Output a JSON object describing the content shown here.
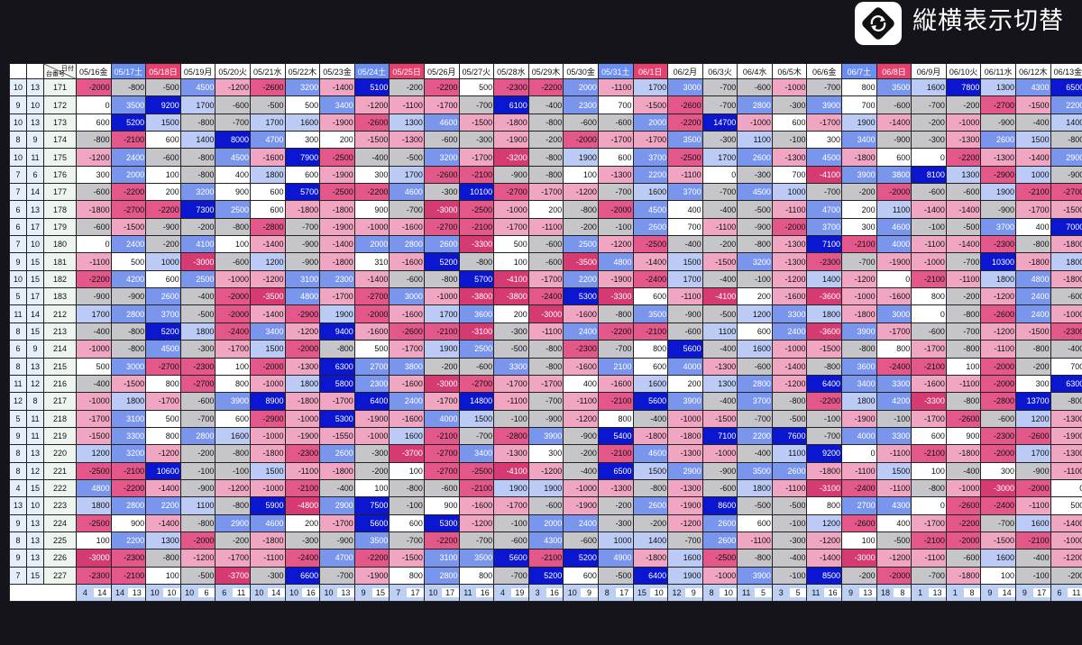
{
  "toolbar": {
    "toggle_label": "縦横表示切替",
    "toggle_icon": "rotate-icon"
  },
  "table": {
    "corner_top": "日付",
    "corner_bottom": "台番号",
    "dates": [
      {
        "label": "05/16金",
        "style": "plain"
      },
      {
        "label": "05/17土",
        "style": "blue"
      },
      {
        "label": "05/18日",
        "style": "red"
      },
      {
        "label": "05/19月",
        "style": "plain"
      },
      {
        "label": "05/20火",
        "style": "plain"
      },
      {
        "label": "05/21水",
        "style": "plain"
      },
      {
        "label": "05/22木",
        "style": "plain"
      },
      {
        "label": "05/23金",
        "style": "plain"
      },
      {
        "label": "05/24土",
        "style": "blue"
      },
      {
        "label": "05/25日",
        "style": "red"
      },
      {
        "label": "05/26月",
        "style": "plain"
      },
      {
        "label": "05/27火",
        "style": "plain"
      },
      {
        "label": "05/28水",
        "style": "plain"
      },
      {
        "label": "05/29木",
        "style": "plain"
      },
      {
        "label": "05/30金",
        "style": "plain"
      },
      {
        "label": "05/31土",
        "style": "blue"
      },
      {
        "label": "06/1日",
        "style": "red"
      },
      {
        "label": "06/2月",
        "style": "plain"
      },
      {
        "label": "06/3火",
        "style": "plain"
      },
      {
        "label": "06/4水",
        "style": "plain"
      },
      {
        "label": "06/5木",
        "style": "plain"
      },
      {
        "label": "06/6金",
        "style": "plain"
      },
      {
        "label": "06/7土",
        "style": "blue"
      },
      {
        "label": "06/8日",
        "style": "red"
      },
      {
        "label": "06/9月",
        "style": "plain"
      },
      {
        "label": "06/10火",
        "style": "plain"
      },
      {
        "label": "06/11水",
        "style": "plain"
      },
      {
        "label": "06/12木",
        "style": "plain"
      },
      {
        "label": "06/13金",
        "style": "plain"
      }
    ],
    "rows": [
      {
        "a": "10",
        "b": "13",
        "m": "171",
        "v": [
          -2000,
          -800,
          -500,
          4500,
          -1200,
          -2600,
          3200,
          -1400,
          5100,
          -200,
          -2200,
          500,
          -2300,
          -2200,
          2000,
          -1100,
          1700,
          3000,
          -700,
          -600,
          -1000,
          -700,
          800,
          3500,
          1600,
          7800,
          1300,
          4300,
          6500
        ]
      },
      {
        "a": "9",
        "b": "10",
        "m": "172",
        "v": [
          0,
          3500,
          9200,
          1700,
          -600,
          -500,
          500,
          3400,
          -1200,
          -1100,
          -1700,
          -700,
          6100,
          -400,
          2300,
          700,
          -1500,
          -2600,
          -700,
          2800,
          -300,
          3900,
          700,
          -600,
          -700,
          -200,
          -2700,
          -1500,
          2200
        ]
      },
      {
        "a": "10",
        "b": "13",
        "m": "173",
        "v": [
          600,
          5200,
          1500,
          -800,
          -700,
          1700,
          1600,
          -1900,
          -2600,
          1300,
          4600,
          -1500,
          -1800,
          -800,
          -600,
          -600,
          2000,
          -2200,
          14700,
          -1000,
          600,
          -1700,
          1900,
          -1400,
          -200,
          -1000,
          -900,
          -400,
          1400
        ]
      },
      {
        "a": "8",
        "b": "9",
        "m": "174",
        "v": [
          -800,
          -2100,
          600,
          1400,
          8000,
          4700,
          300,
          200,
          -1500,
          -1300,
          -600,
          -300,
          -1900,
          -200,
          -2000,
          -1700,
          -1700,
          3500,
          -300,
          1100,
          -100,
          300,
          3400,
          -900,
          -300,
          -1300,
          2600,
          1500,
          -800
        ]
      },
      {
        "a": "10",
        "b": "11",
        "m": "175",
        "v": [
          -1200,
          2400,
          -600,
          -800,
          4500,
          -1600,
          7900,
          -2500,
          -400,
          -500,
          3200,
          -1700,
          -3200,
          -800,
          1900,
          600,
          3700,
          -2500,
          1700,
          2600,
          -1300,
          4500,
          -1800,
          600,
          0,
          -2200,
          -1300,
          -1400,
          2900
        ]
      },
      {
        "a": "7",
        "b": "6",
        "m": "176",
        "v": [
          300,
          2000,
          100,
          -800,
          400,
          1800,
          600,
          -1900,
          300,
          1700,
          -2600,
          -2100,
          -900,
          -800,
          100,
          -1300,
          2200,
          -1100,
          0,
          -300,
          700,
          -4100,
          3900,
          3800,
          8100,
          1300,
          -2900,
          1000,
          -900
        ]
      },
      {
        "a": "7",
        "b": "14",
        "m": "177",
        "v": [
          -600,
          -2200,
          200,
          3200,
          900,
          600,
          5700,
          -2500,
          -2200,
          4600,
          -300,
          10100,
          -2700,
          -1700,
          -1200,
          -700,
          1600,
          3700,
          -700,
          4500,
          1000,
          -700,
          -200,
          -2000,
          -600,
          -600,
          1900,
          -2100,
          -2700
        ]
      },
      {
        "a": "6",
        "b": "13",
        "m": "178",
        "v": [
          -1800,
          -2700,
          -2200,
          7300,
          2500,
          600,
          -1800,
          -1800,
          900,
          -700,
          -3000,
          -2500,
          -1000,
          200,
          -800,
          -2000,
          4500,
          400,
          -400,
          -500,
          -1100,
          4700,
          200,
          1100,
          -1400,
          -1400,
          -900,
          -1700,
          -1500
        ]
      },
      {
        "a": "6",
        "b": "17",
        "m": "179",
        "v": [
          -600,
          -1500,
          -900,
          -200,
          -800,
          -2800,
          -700,
          -1900,
          -1000,
          -1600,
          -2700,
          -2100,
          -1700,
          -1100,
          -200,
          -100,
          2600,
          700,
          -1100,
          -900,
          -2000,
          3700,
          300,
          4600,
          -100,
          -500,
          3700,
          400,
          7000
        ]
      },
      {
        "a": "7",
        "b": "10",
        "m": "180",
        "v": [
          0,
          2400,
          -200,
          4100,
          100,
          -1400,
          -900,
          -1400,
          2000,
          2800,
          2600,
          -3300,
          500,
          -600,
          2500,
          -1200,
          -2500,
          -400,
          -200,
          -800,
          -1300,
          7100,
          -2100,
          4000,
          -1100,
          -1400,
          -2300,
          -800,
          -1800
        ]
      },
      {
        "a": "9",
        "b": "15",
        "m": "181",
        "v": [
          -1100,
          500,
          1000,
          -3000,
          -600,
          1200,
          -900,
          -1800,
          310,
          -1600,
          5200,
          -800,
          100,
          -600,
          -3500,
          4800,
          -1400,
          1500,
          -1500,
          3200,
          -1300,
          -2300,
          -700,
          -1900,
          -1000,
          -700,
          10300,
          -1800,
          1800
        ]
      },
      {
        "a": "10",
        "b": "15",
        "m": "182",
        "v": [
          -2200,
          4200,
          600,
          2500,
          -1000,
          -1200,
          3100,
          2300,
          -1400,
          -600,
          -800,
          5700,
          -4100,
          -1700,
          2200,
          -1900,
          -2400,
          1700,
          -400,
          -100,
          -1200,
          1400,
          -1200,
          0,
          -2100,
          -1100,
          1800,
          4800,
          -1800
        ]
      },
      {
        "a": "5",
        "b": "17",
        "m": "183",
        "v": [
          -900,
          -900,
          2600,
          -400,
          -2000,
          -3500,
          4800,
          -1700,
          -2700,
          3000,
          -1000,
          -3800,
          -3800,
          -2400,
          5300,
          -3300,
          600,
          -1100,
          -4100,
          200,
          -1600,
          -3600,
          -1000,
          -1600,
          800,
          -200,
          -1200,
          2400,
          -600
        ]
      },
      {
        "a": "11",
        "b": "14",
        "m": "212",
        "v": [
          1700,
          2800,
          3700,
          -500,
          -2000,
          -1400,
          -2900,
          1900,
          -2000,
          -1600,
          1700,
          3600,
          200,
          -3000,
          -1600,
          -800,
          3500,
          -900,
          -500,
          1200,
          3300,
          1800,
          -1800,
          3000,
          0,
          -800,
          -2600,
          2400,
          -1000
        ]
      },
      {
        "a": "8",
        "b": "15",
        "m": "213",
        "v": [
          -400,
          -800,
          5200,
          1800,
          -2400,
          3400,
          -1200,
          9400,
          -1600,
          -2600,
          -2100,
          -3100,
          -300,
          -1100,
          2400,
          -2200,
          -2100,
          -600,
          1100,
          600,
          2400,
          -3600,
          3900,
          -1700,
          -600,
          -700,
          -1200,
          -1500,
          -2300
        ]
      },
      {
        "a": "6",
        "b": "9",
        "m": "214",
        "v": [
          -1000,
          -800,
          4500,
          -300,
          -1700,
          1500,
          -2000,
          -800,
          500,
          -1700,
          1900,
          2500,
          -500,
          -800,
          -2300,
          -700,
          800,
          5600,
          -400,
          1600,
          -1000,
          -1500,
          -800,
          800,
          -1700,
          -800,
          -1100,
          -800,
          -400
        ]
      },
      {
        "a": "8",
        "b": "13",
        "m": "215",
        "v": [
          500,
          3000,
          -2700,
          -2300,
          100,
          -2000,
          -1300,
          6300,
          2700,
          3800,
          -200,
          -600,
          3300,
          -800,
          -1600,
          2100,
          600,
          4000,
          -1300,
          -600,
          -1400,
          -800,
          3600,
          -2400,
          -2100,
          100,
          -2000,
          -200,
          700
        ]
      },
      {
        "a": "11",
        "b": "12",
        "m": "216",
        "v": [
          -400,
          -1500,
          800,
          -2700,
          800,
          -1000,
          1800,
          5800,
          2300,
          -1600,
          -3000,
          -2700,
          -1700,
          -1700,
          400,
          -1600,
          1600,
          200,
          1300,
          2800,
          -1200,
          6400,
          3400,
          3300,
          -1600,
          -1100,
          -2000,
          300,
          6300
        ]
      },
      {
        "a": "12",
        "b": "8",
        "m": "217",
        "v": [
          -1000,
          1800,
          -1700,
          -600,
          3900,
          8900,
          -1800,
          -1700,
          6400,
          2400,
          -1700,
          14800,
          -1100,
          -700,
          -1100,
          -2100,
          5600,
          3900,
          -400,
          3700,
          -800,
          -2200,
          1800,
          4200,
          -3300,
          -800,
          -2800,
          13700,
          -800
        ]
      },
      {
        "a": "5",
        "b": "11",
        "m": "218",
        "v": [
          -1700,
          3100,
          500,
          -700,
          600,
          -2900,
          -1000,
          5300,
          -1900,
          -1600,
          4000,
          1500,
          -100,
          -900,
          -1200,
          800,
          -400,
          -1000,
          -1500,
          -700,
          -500,
          -100,
          -1900,
          -100,
          -1700,
          -2600,
          -600,
          1200,
          -1300
        ]
      },
      {
        "a": "9",
        "b": "11",
        "m": "219",
        "v": [
          -1500,
          3300,
          800,
          2800,
          1600,
          -1000,
          -1900,
          -1550,
          -1000,
          1600,
          -2100,
          -700,
          -2800,
          3900,
          -900,
          5400,
          -1800,
          -1800,
          7100,
          2200,
          7600,
          -700,
          4000,
          3300,
          600,
          900,
          -2300,
          -2600,
          -1900
        ]
      },
      {
        "a": "8",
        "b": "13",
        "m": "220",
        "v": [
          1200,
          3200,
          -1200,
          -200,
          -800,
          -1800,
          -2300,
          2600,
          -300,
          -3700,
          -2700,
          3400,
          -1300,
          300,
          -200,
          -2100,
          4600,
          -1300,
          -1000,
          -400,
          1100,
          9200,
          0,
          -1100,
          -2100,
          -1800,
          -2000,
          1700,
          -1300
        ]
      },
      {
        "a": "8",
        "b": "12",
        "m": "221",
        "v": [
          -2500,
          -2100,
          10600,
          -100,
          -100,
          1500,
          -1100,
          -1800,
          -200,
          100,
          -2700,
          -2500,
          -4100,
          -1200,
          -400,
          6500,
          1500,
          2900,
          -900,
          3500,
          2600,
          -1800,
          -1100,
          1500,
          100,
          -400,
          300,
          -900,
          -1100
        ]
      },
      {
        "a": "4",
        "b": "15",
        "m": "222",
        "v": [
          4800,
          -2200,
          -1400,
          -900,
          -1200,
          -1000,
          -2100,
          -400,
          100,
          -800,
          -600,
          -2100,
          1900,
          1900,
          -1000,
          -1300,
          -800,
          -1300,
          -600,
          1800,
          -1100,
          -3100,
          -2400,
          -1100,
          -800,
          -1000,
          -3000,
          -2000,
          0
        ]
      },
      {
        "a": "13",
        "b": "10",
        "m": "223",
        "v": [
          1800,
          2800,
          2200,
          1100,
          -800,
          5900,
          -4800,
          2900,
          7500,
          -100,
          900,
          -1600,
          -1700,
          -600,
          -1900,
          -200,
          2600,
          -1900,
          8600,
          -500,
          -500,
          800,
          2700,
          4300,
          0,
          -2600,
          -2400,
          -1100,
          500
        ]
      },
      {
        "a": "9",
        "b": "13",
        "m": "224",
        "v": [
          -2500,
          900,
          -1400,
          -800,
          2900,
          4600,
          200,
          -1700,
          5600,
          600,
          5300,
          -1200,
          -100,
          2000,
          2400,
          -300,
          -200,
          -1200,
          2600,
          600,
          -100,
          1200,
          -2600,
          400,
          -1700,
          -2200,
          -700,
          1600,
          -1400
        ]
      },
      {
        "a": "8",
        "b": "13",
        "m": "225",
        "v": [
          100,
          2200,
          1300,
          -2000,
          -200,
          -1800,
          -300,
          -900,
          3500,
          -700,
          -2200,
          -700,
          -600,
          4300,
          -600,
          1000,
          1400,
          -700,
          2600,
          -1100,
          -300,
          -1200,
          100,
          -500,
          -2100,
          -2000,
          -1500,
          -2100,
          -1000
        ]
      },
      {
        "a": "9",
        "b": "13",
        "m": "226",
        "v": [
          -3000,
          -2300,
          -800,
          -1200,
          -1700,
          -1100,
          -2400,
          4700,
          -2200,
          -1500,
          3100,
          3500,
          5600,
          -2100,
          5200,
          4900,
          -1800,
          1600,
          -2500,
          -800,
          -400,
          -1400,
          -3000,
          -1200,
          -1100,
          -600,
          1600,
          -400,
          -1200
        ]
      },
      {
        "a": "7",
        "b": "15",
        "m": "227",
        "v": [
          -2300,
          -2100,
          100,
          -500,
          -3700,
          -300,
          6600,
          -700,
          -1900,
          800,
          2800,
          800,
          -700,
          5200,
          600,
          -500,
          6400,
          1900,
          -1000,
          3900,
          -100,
          8500,
          -200,
          -2000,
          -700,
          -1800,
          100,
          -100,
          -200
        ]
      }
    ],
    "footer": [
      [
        "4",
        "14"
      ],
      [
        "14",
        "13"
      ],
      [
        "10",
        "10"
      ],
      [
        "10",
        "6"
      ],
      [
        "6",
        "11"
      ],
      [
        "10",
        "14"
      ],
      [
        "10",
        "16"
      ],
      [
        "10",
        "13"
      ],
      [
        "9",
        "15"
      ],
      [
        "7",
        "17"
      ],
      [
        "10",
        "17"
      ],
      [
        "11",
        "16"
      ],
      [
        "4",
        "19"
      ],
      [
        "3",
        "16"
      ],
      [
        "10",
        "9"
      ],
      [
        "8",
        "17"
      ],
      [
        "15",
        "10"
      ],
      [
        "12",
        "9"
      ],
      [
        "8",
        "10"
      ],
      [
        "11",
        "5"
      ],
      [
        "3",
        "5"
      ],
      [
        "11",
        "16"
      ],
      [
        "9",
        "13"
      ],
      [
        "18",
        "8"
      ],
      [
        "1",
        "13"
      ],
      [
        "1",
        "8"
      ],
      [
        "9",
        "14"
      ],
      [
        "9",
        "17"
      ],
      [
        "6",
        "11"
      ]
    ]
  }
}
